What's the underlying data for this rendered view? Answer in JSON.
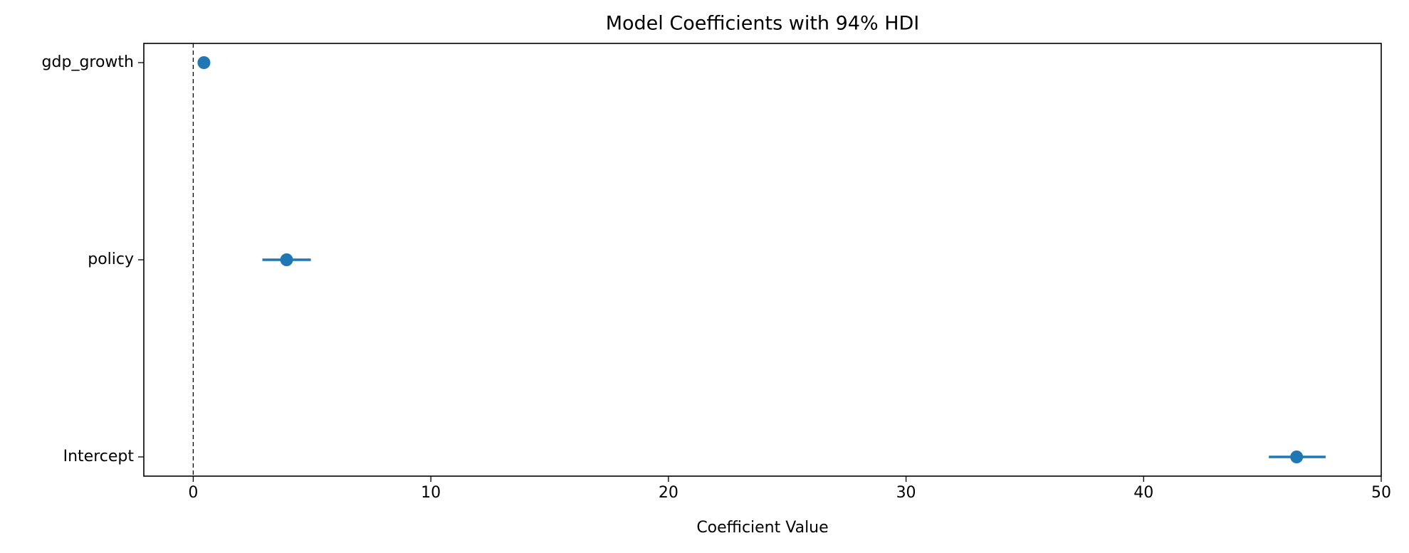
{
  "chart_data": {
    "type": "forest",
    "title": "Model Coefficients with 94% HDI",
    "xlabel": "Coefficient Value",
    "categories": [
      "gdp_growth",
      "policy",
      "Intercept"
    ],
    "values": [
      0.45,
      3.93,
      46.44
    ],
    "lower": [
      0.35,
      2.91,
      45.27
    ],
    "upper": [
      0.55,
      4.95,
      47.66
    ],
    "color": "#1f77b4",
    "xlim": [
      -2.08,
      50
    ],
    "xticks": [
      0,
      10,
      20,
      30,
      40,
      50
    ],
    "vline": 0
  }
}
